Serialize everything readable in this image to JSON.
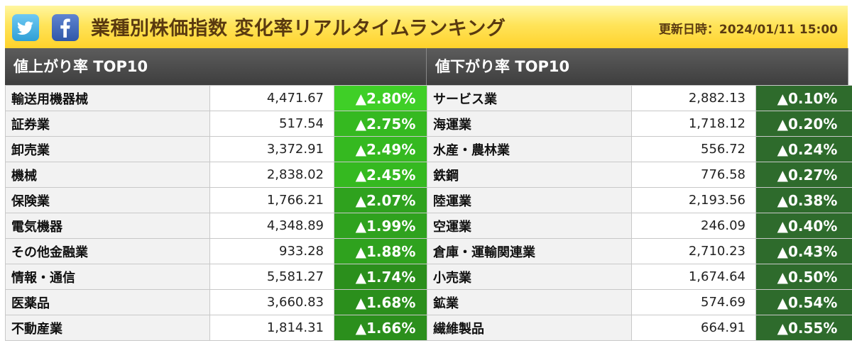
{
  "header": {
    "title": "業種別株価指数 変化率リアルタイムランキング",
    "updated_label": "更新日時：",
    "updated_value": "2024/01/11 15:00"
  },
  "sns": [
    {
      "icon": "twitter-icon"
    },
    {
      "icon": "facebook-icon"
    }
  ],
  "colors": {
    "header_top": "#fff6a0",
    "header_bottom": "#ffd22b",
    "rise": "#35b920",
    "fall": "#2e6b2c"
  },
  "rising": {
    "title": "値上がり率 TOP10",
    "rows": [
      {
        "name": "輸送用機器械",
        "price": "4,471.67",
        "change": "▲2.80%"
      },
      {
        "name": "証券業",
        "price": "517.54",
        "change": "▲2.75%"
      },
      {
        "name": "卸売業",
        "price": "3,372.91",
        "change": "▲2.49%"
      },
      {
        "name": "機械",
        "price": "2,838.02",
        "change": "▲2.45%"
      },
      {
        "name": "保険業",
        "price": "1,766.21",
        "change": "▲2.07%"
      },
      {
        "name": "電気機器",
        "price": "4,348.89",
        "change": "▲1.99%"
      },
      {
        "name": "その他金融業",
        "price": "933.28",
        "change": "▲1.88%"
      },
      {
        "name": "情報・通信",
        "price": "5,581.27",
        "change": "▲1.74%"
      },
      {
        "name": "医薬品",
        "price": "3,660.83",
        "change": "▲1.68%"
      },
      {
        "name": "不動産業",
        "price": "1,814.31",
        "change": "▲1.66%"
      }
    ]
  },
  "falling": {
    "title": "値下がり率 TOP10",
    "rows": [
      {
        "name": "サービス業",
        "price": "2,882.13",
        "change": "▲0.10%"
      },
      {
        "name": "海運業",
        "price": "1,718.12",
        "change": "▲0.20%"
      },
      {
        "name": "水産・農林業",
        "price": "556.72",
        "change": "▲0.24%"
      },
      {
        "name": "鉄鋼",
        "price": "776.58",
        "change": "▲0.27%"
      },
      {
        "name": "陸運業",
        "price": "2,193.56",
        "change": "▲0.38%"
      },
      {
        "name": "空運業",
        "price": "246.09",
        "change": "▲0.40%"
      },
      {
        "name": "倉庫・運輸関連業",
        "price": "2,710.23",
        "change": "▲0.43%"
      },
      {
        "name": "小売業",
        "price": "1,674.64",
        "change": "▲0.50%"
      },
      {
        "name": "鉱業",
        "price": "574.69",
        "change": "▲0.54%"
      },
      {
        "name": "繊維製品",
        "price": "664.91",
        "change": "▲0.55%"
      }
    ]
  }
}
